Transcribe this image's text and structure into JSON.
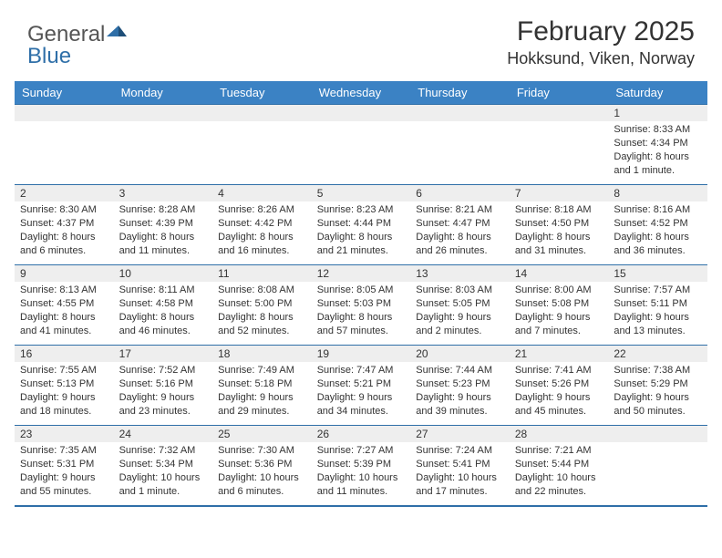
{
  "logo": {
    "general": "General",
    "blue": "Blue"
  },
  "header": {
    "month_title": "February 2025",
    "location": "Hokksund, Viken, Norway"
  },
  "colors": {
    "header_bar": "#3b82c4",
    "border": "#2f6fa8",
    "daynum_bg": "#eeeeee",
    "text": "#333333",
    "logo_blue": "#2f6fa8",
    "logo_gray": "#555555",
    "background": "#ffffff"
  },
  "typography": {
    "month_title_size": 30,
    "location_size": 18,
    "dayhead_size": 13,
    "daynum_size": 12,
    "content_size": 11,
    "logo_size": 24
  },
  "day_names": [
    "Sunday",
    "Monday",
    "Tuesday",
    "Wednesday",
    "Thursday",
    "Friday",
    "Saturday"
  ],
  "weeks": [
    [
      {
        "n": "",
        "sr": "",
        "ss": "",
        "dl": ""
      },
      {
        "n": "",
        "sr": "",
        "ss": "",
        "dl": ""
      },
      {
        "n": "",
        "sr": "",
        "ss": "",
        "dl": ""
      },
      {
        "n": "",
        "sr": "",
        "ss": "",
        "dl": ""
      },
      {
        "n": "",
        "sr": "",
        "ss": "",
        "dl": ""
      },
      {
        "n": "",
        "sr": "",
        "ss": "",
        "dl": ""
      },
      {
        "n": "1",
        "sr": "Sunrise: 8:33 AM",
        "ss": "Sunset: 4:34 PM",
        "dl": "Daylight: 8 hours and 1 minute."
      }
    ],
    [
      {
        "n": "2",
        "sr": "Sunrise: 8:30 AM",
        "ss": "Sunset: 4:37 PM",
        "dl": "Daylight: 8 hours and 6 minutes."
      },
      {
        "n": "3",
        "sr": "Sunrise: 8:28 AM",
        "ss": "Sunset: 4:39 PM",
        "dl": "Daylight: 8 hours and 11 minutes."
      },
      {
        "n": "4",
        "sr": "Sunrise: 8:26 AM",
        "ss": "Sunset: 4:42 PM",
        "dl": "Daylight: 8 hours and 16 minutes."
      },
      {
        "n": "5",
        "sr": "Sunrise: 8:23 AM",
        "ss": "Sunset: 4:44 PM",
        "dl": "Daylight: 8 hours and 21 minutes."
      },
      {
        "n": "6",
        "sr": "Sunrise: 8:21 AM",
        "ss": "Sunset: 4:47 PM",
        "dl": "Daylight: 8 hours and 26 minutes."
      },
      {
        "n": "7",
        "sr": "Sunrise: 8:18 AM",
        "ss": "Sunset: 4:50 PM",
        "dl": "Daylight: 8 hours and 31 minutes."
      },
      {
        "n": "8",
        "sr": "Sunrise: 8:16 AM",
        "ss": "Sunset: 4:52 PM",
        "dl": "Daylight: 8 hours and 36 minutes."
      }
    ],
    [
      {
        "n": "9",
        "sr": "Sunrise: 8:13 AM",
        "ss": "Sunset: 4:55 PM",
        "dl": "Daylight: 8 hours and 41 minutes."
      },
      {
        "n": "10",
        "sr": "Sunrise: 8:11 AM",
        "ss": "Sunset: 4:58 PM",
        "dl": "Daylight: 8 hours and 46 minutes."
      },
      {
        "n": "11",
        "sr": "Sunrise: 8:08 AM",
        "ss": "Sunset: 5:00 PM",
        "dl": "Daylight: 8 hours and 52 minutes."
      },
      {
        "n": "12",
        "sr": "Sunrise: 8:05 AM",
        "ss": "Sunset: 5:03 PM",
        "dl": "Daylight: 8 hours and 57 minutes."
      },
      {
        "n": "13",
        "sr": "Sunrise: 8:03 AM",
        "ss": "Sunset: 5:05 PM",
        "dl": "Daylight: 9 hours and 2 minutes."
      },
      {
        "n": "14",
        "sr": "Sunrise: 8:00 AM",
        "ss": "Sunset: 5:08 PM",
        "dl": "Daylight: 9 hours and 7 minutes."
      },
      {
        "n": "15",
        "sr": "Sunrise: 7:57 AM",
        "ss": "Sunset: 5:11 PM",
        "dl": "Daylight: 9 hours and 13 minutes."
      }
    ],
    [
      {
        "n": "16",
        "sr": "Sunrise: 7:55 AM",
        "ss": "Sunset: 5:13 PM",
        "dl": "Daylight: 9 hours and 18 minutes."
      },
      {
        "n": "17",
        "sr": "Sunrise: 7:52 AM",
        "ss": "Sunset: 5:16 PM",
        "dl": "Daylight: 9 hours and 23 minutes."
      },
      {
        "n": "18",
        "sr": "Sunrise: 7:49 AM",
        "ss": "Sunset: 5:18 PM",
        "dl": "Daylight: 9 hours and 29 minutes."
      },
      {
        "n": "19",
        "sr": "Sunrise: 7:47 AM",
        "ss": "Sunset: 5:21 PM",
        "dl": "Daylight: 9 hours and 34 minutes."
      },
      {
        "n": "20",
        "sr": "Sunrise: 7:44 AM",
        "ss": "Sunset: 5:23 PM",
        "dl": "Daylight: 9 hours and 39 minutes."
      },
      {
        "n": "21",
        "sr": "Sunrise: 7:41 AM",
        "ss": "Sunset: 5:26 PM",
        "dl": "Daylight: 9 hours and 45 minutes."
      },
      {
        "n": "22",
        "sr": "Sunrise: 7:38 AM",
        "ss": "Sunset: 5:29 PM",
        "dl": "Daylight: 9 hours and 50 minutes."
      }
    ],
    [
      {
        "n": "23",
        "sr": "Sunrise: 7:35 AM",
        "ss": "Sunset: 5:31 PM",
        "dl": "Daylight: 9 hours and 55 minutes."
      },
      {
        "n": "24",
        "sr": "Sunrise: 7:32 AM",
        "ss": "Sunset: 5:34 PM",
        "dl": "Daylight: 10 hours and 1 minute."
      },
      {
        "n": "25",
        "sr": "Sunrise: 7:30 AM",
        "ss": "Sunset: 5:36 PM",
        "dl": "Daylight: 10 hours and 6 minutes."
      },
      {
        "n": "26",
        "sr": "Sunrise: 7:27 AM",
        "ss": "Sunset: 5:39 PM",
        "dl": "Daylight: 10 hours and 11 minutes."
      },
      {
        "n": "27",
        "sr": "Sunrise: 7:24 AM",
        "ss": "Sunset: 5:41 PM",
        "dl": "Daylight: 10 hours and 17 minutes."
      },
      {
        "n": "28",
        "sr": "Sunrise: 7:21 AM",
        "ss": "Sunset: 5:44 PM",
        "dl": "Daylight: 10 hours and 22 minutes."
      },
      {
        "n": "",
        "sr": "",
        "ss": "",
        "dl": ""
      }
    ]
  ]
}
